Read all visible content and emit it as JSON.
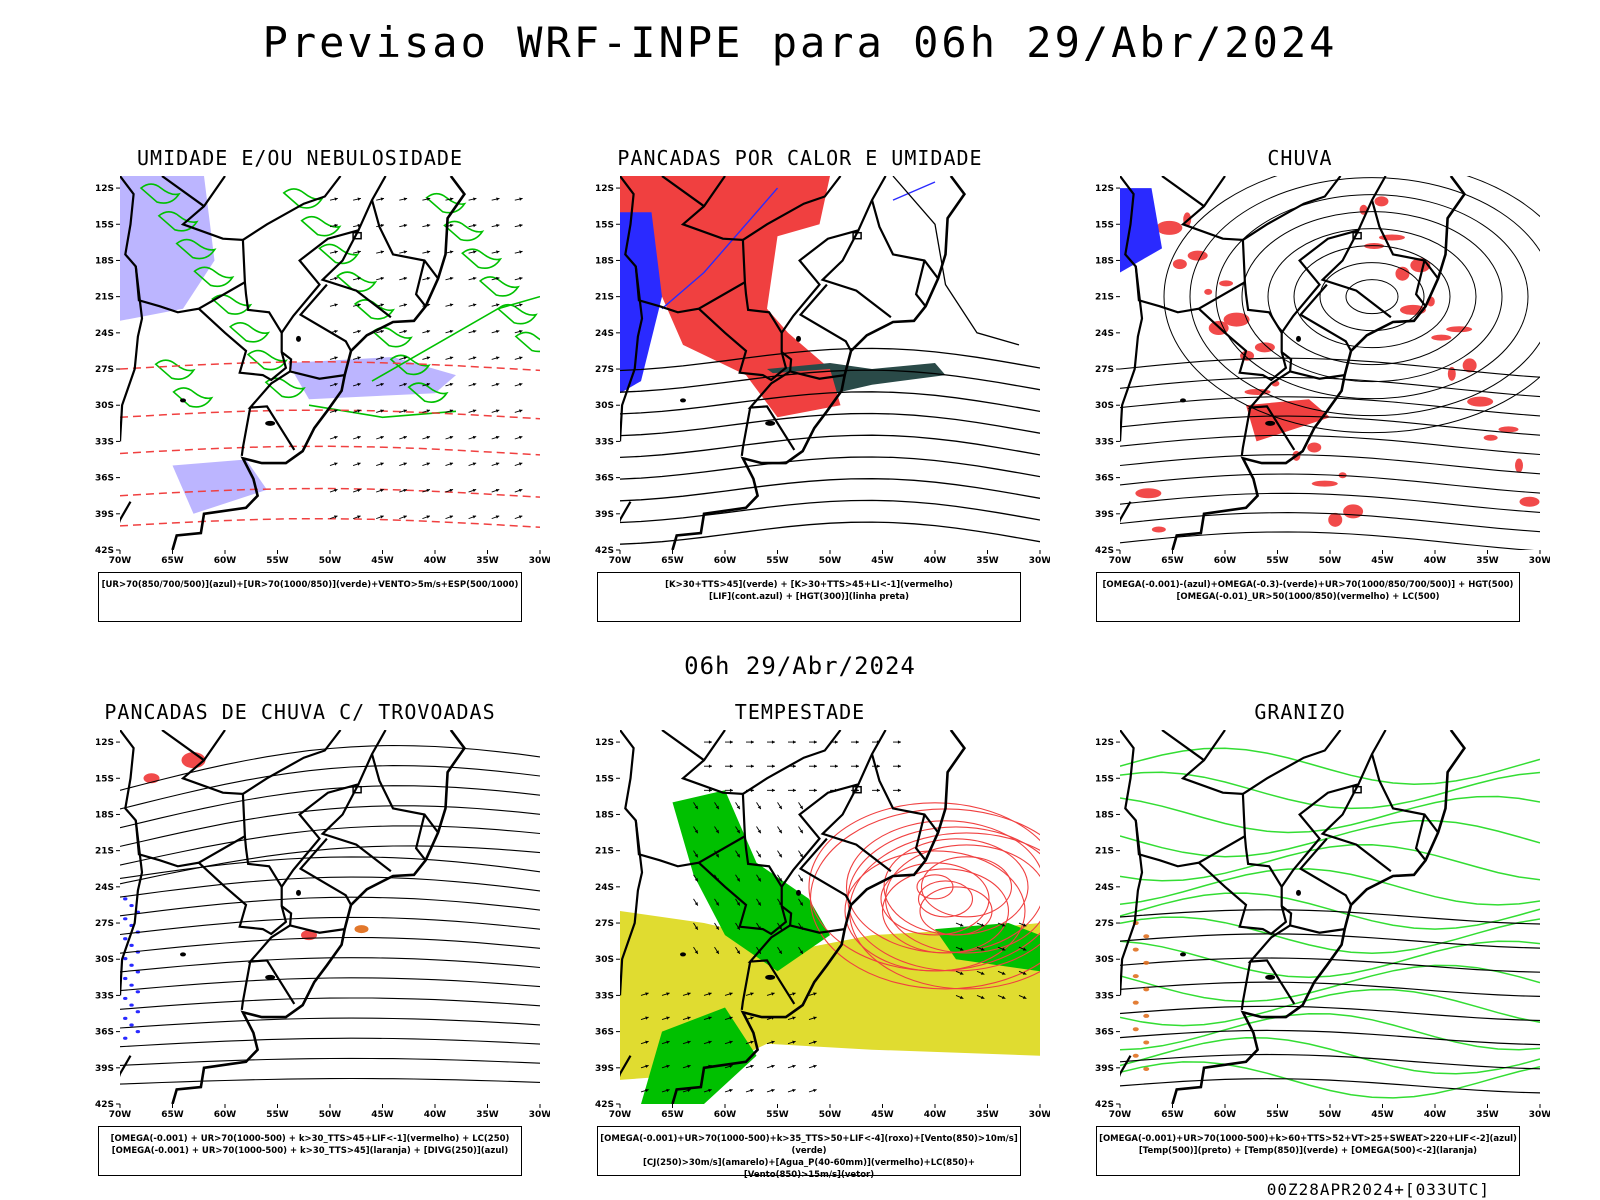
{
  "title": "Previsao WRF-INPE  para 06h 29/Abr/2024",
  "mid_title": "06h 29/Abr/2024",
  "footer": "00Z28APR2024+[033UTC]",
  "lat_ticks": [
    "12S",
    "15S",
    "18S",
    "21S",
    "24S",
    "27S",
    "30S",
    "33S",
    "36S",
    "39S",
    "42S"
  ],
  "lon_ticks": [
    "70W",
    "65W",
    "60W",
    "55W",
    "50W",
    "45W",
    "40W",
    "35W",
    "30W"
  ],
  "panels": [
    {
      "title": "UMIDADE E/OU NEBULOSIDADE",
      "legend": [
        "[UR>70(850/700/500)](azul)+[UR>70(1000/850)](verde)+VENTO>5m/s+ESP(500/1000)"
      ]
    },
    {
      "title": "PANCADAS POR CALOR E UMIDADE",
      "legend": [
        "[K>30+TTS>45](verde) + [K>30+TTS>45+LI<-1](vermelho)",
        "[LIF](cont.azul) + [HGT(300)](linha preta)"
      ]
    },
    {
      "title": "CHUVA",
      "legend": [
        "[OMEGA(-0.001)-(azul)+OMEGA(-0.3)-(verde)+UR>70(1000/850/700/500)] + HGT(500)",
        "[OMEGA(-0.01)_UR>50(1000/850)(vermelho) + LC(500)"
      ]
    },
    {
      "title": "PANCADAS DE CHUVA C/ TROVOADAS",
      "legend": [
        "[OMEGA(-0.001) + UR>70(1000-500) + k>30_TTS>45+LIF<-1](vermelho) + LC(250)",
        "[OMEGA(-0.001) + UR>70(1000-500) + k>30_TTS>45](laranja) + [DIVG(250)](azul)"
      ]
    },
    {
      "title": "TEMPESTADE",
      "legend": [
        "[OMEGA(-0.001)+UR>70(1000-500)+k>35_TTS>50+LIF<-4](roxo)+[Vento(850)>10m/s](verde)",
        "[CJ(250)>30m/s](amarelo)+[Agua_P(40-60mm)](vermelho)+LC(850)+[Vento(850)>15m/s](vetor)"
      ]
    },
    {
      "title": "GRANIZO",
      "legend": [
        "[OMEGA(-0.001)+UR>70(1000-500)+k>60+TTS>52+VT>25+SWEAT>220+LIF<-2](azul)",
        "[Temp(500)](preto) + [Temp(850)](verde) + [OMEGA(500)<-2](laranja)"
      ]
    }
  ],
  "colors": {
    "red": "#f04040",
    "green": "#00c000",
    "lightgreen": "#33dd33",
    "blue": "#2a2aff",
    "lavender": "#b0a8ff",
    "yellow": "#e0dc30",
    "darkteal": "#2a4a48",
    "orange": "#e07020"
  }
}
